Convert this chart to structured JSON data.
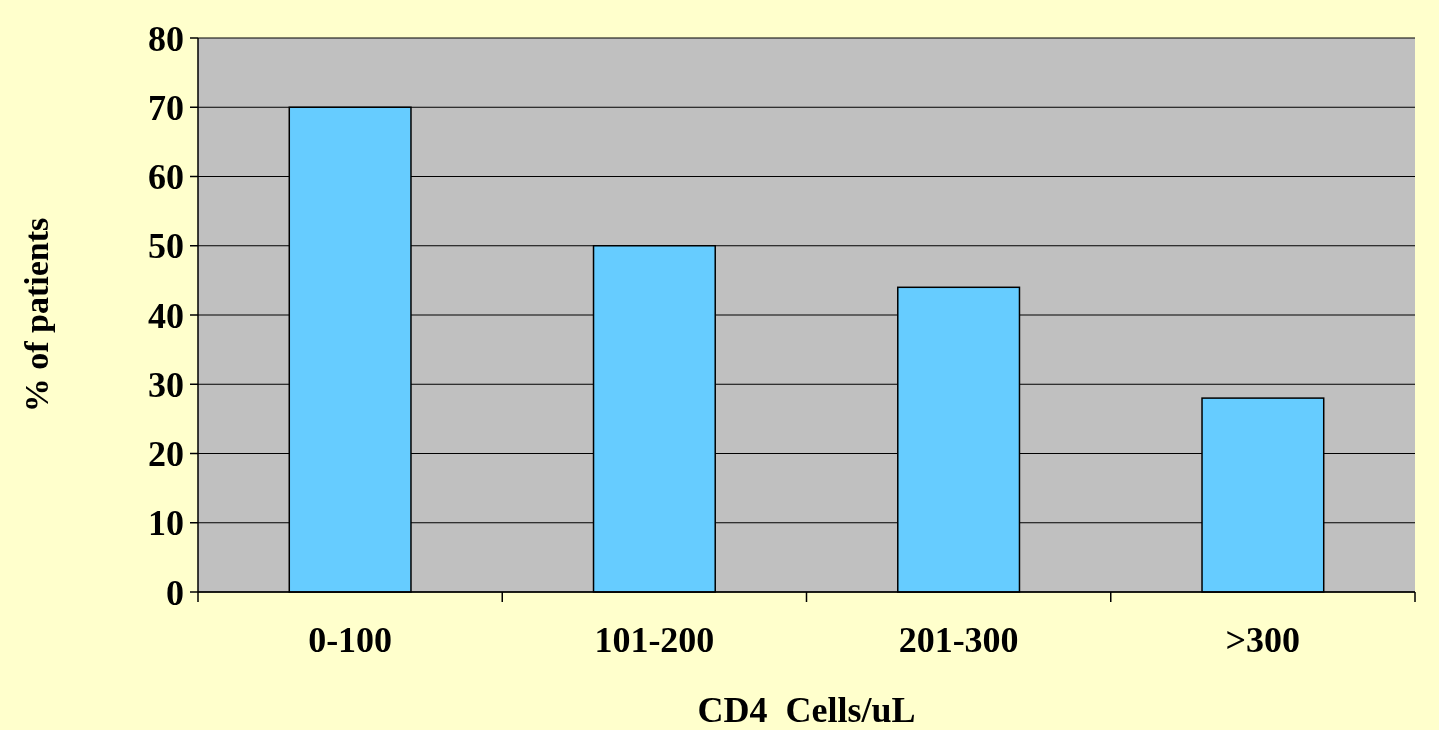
{
  "chart_data": {
    "type": "bar",
    "xlabel": "CD4  Cells/uL",
    "ylabel": "% of patients",
    "categories": [
      "0-100",
      "101-200",
      "201-300",
      ">300"
    ],
    "values": [
      70,
      50,
      44,
      28
    ],
    "color": "#66ccff",
    "ylim": [
      0,
      80
    ],
    "yticks": [
      0,
      10,
      20,
      30,
      40,
      50,
      60,
      70,
      80
    ],
    "grid": "y"
  }
}
